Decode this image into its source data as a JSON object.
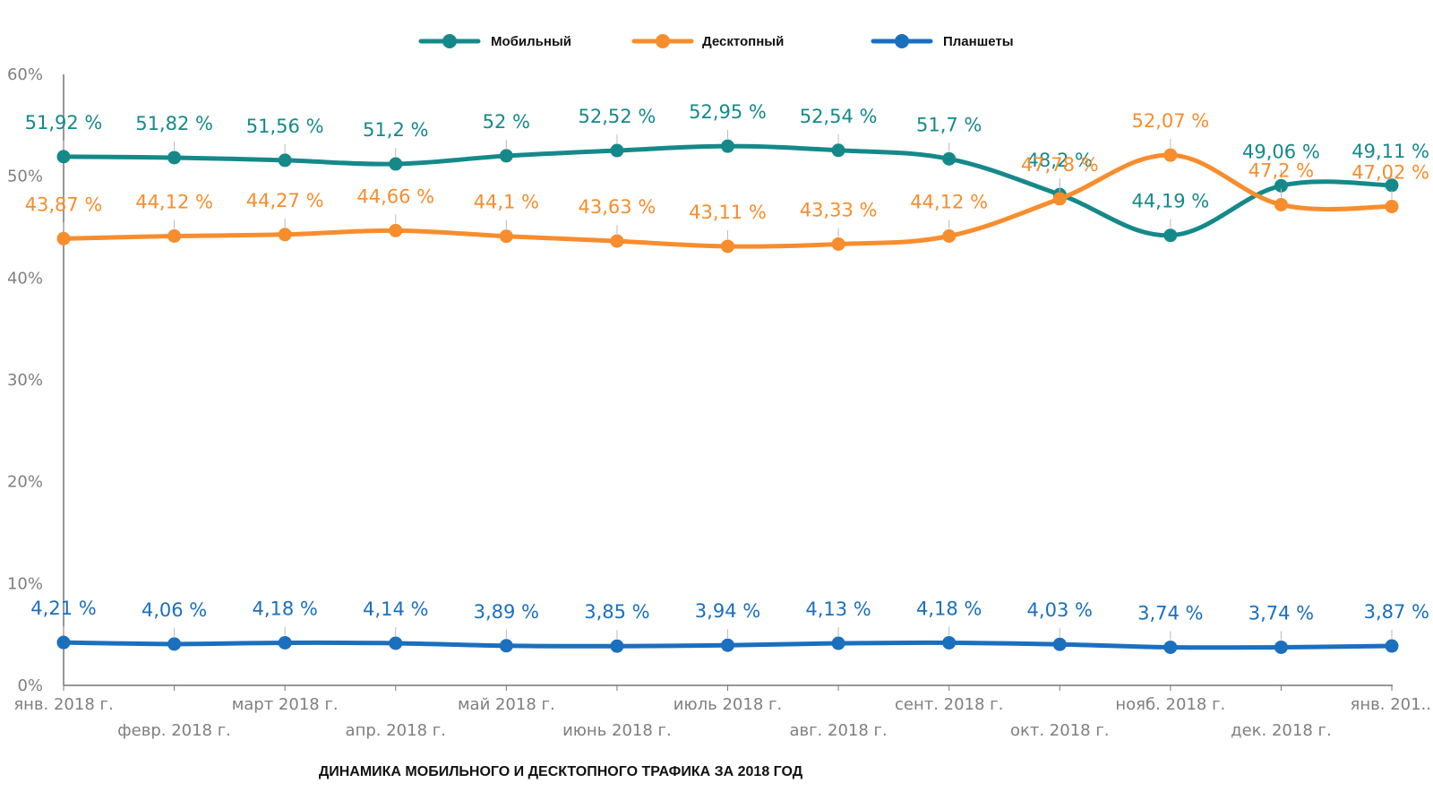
{
  "chart_data": {
    "type": "line",
    "title": "ДИНАМИКА МОБИЛЬНОГО И ДЕСКТОПНОГО ТРАФИКА ЗА 2018 ГОД",
    "xlabel": "",
    "ylabel": "",
    "ylim": [
      0,
      60
    ],
    "yticks": [
      "0%",
      "10%",
      "20%",
      "30%",
      "40%",
      "50%",
      "60%"
    ],
    "categories": [
      "янв. 2018 г.",
      "февр. 2018 г.",
      "март 2018 г.",
      "апр. 2018 г.",
      "май 2018 г.",
      "июнь 2018 г.",
      "июль 2018 г.",
      "авг. 2018 г.",
      "сент. 2018 г.",
      "окт. 2018 г.",
      "нояб. 2018 г.",
      "дек. 2018 г.",
      "янв. 201.."
    ],
    "grid": false,
    "legend_position": "top-center",
    "series": [
      {
        "name": "Мобильный",
        "color": "#15898a",
        "values": [
          51.92,
          51.82,
          51.56,
          51.2,
          52,
          52.52,
          52.95,
          52.54,
          51.7,
          48.2,
          44.19,
          49.06,
          49.11
        ],
        "labels": [
          "51,92 %",
          "51,82 %",
          "51,56 %",
          "51,2 %",
          "52 %",
          "52,52 %",
          "52,95 %",
          "52,54 %",
          "51,7 %",
          "48,2 %",
          "44,19 %",
          "49,06 %",
          "49,11 %"
        ]
      },
      {
        "name": "Десктопный",
        "color": "#f78d2d",
        "values": [
          43.87,
          44.12,
          44.27,
          44.66,
          44.1,
          43.63,
          43.11,
          43.33,
          44.12,
          47.78,
          52.07,
          47.2,
          47.02
        ],
        "labels": [
          "43,87 %",
          "44,12 %",
          "44,27 %",
          "44,66 %",
          "44,1 %",
          "43,63 %",
          "43,11 %",
          "43,33 %",
          "44,12 %",
          "47,78 %",
          "52,07 %",
          "47,2 %",
          "47,02 %"
        ]
      },
      {
        "name": "Планшеты",
        "color": "#1a6fbf",
        "values": [
          4.21,
          4.06,
          4.18,
          4.14,
          3.89,
          3.85,
          3.94,
          4.13,
          4.18,
          4.03,
          3.74,
          3.74,
          3.87
        ],
        "labels": [
          "4,21 %",
          "4,06 %",
          "4,18 %",
          "4,14 %",
          "3,89 %",
          "3,85 %",
          "3,94 %",
          "4,13 %",
          "4,18 %",
          "4,03 %",
          "3,74 %",
          "3,74 %",
          "3,87 %"
        ]
      }
    ]
  }
}
